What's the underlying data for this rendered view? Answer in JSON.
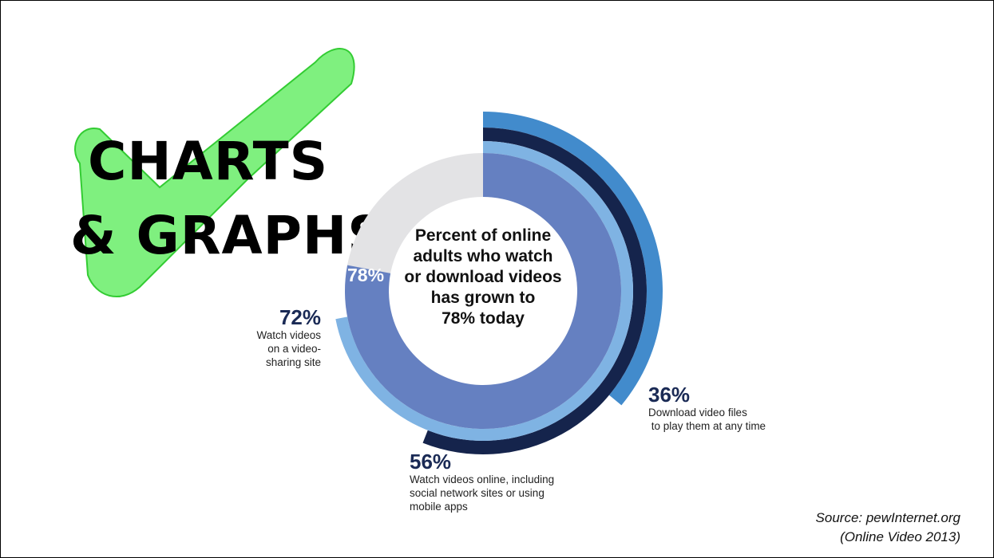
{
  "logo": {
    "line1": "CHARTS",
    "line2": "& GRAPHS",
    "check_color": "#7ff07f",
    "check_outline": "#33cc33"
  },
  "chart_data": {
    "type": "radial-bar",
    "title": "Percent of online adults who watch or download videos has grown to 78% today",
    "title_lines": [
      "Percent of online",
      "adults who watch",
      "or download videos",
      "has grown to",
      "78% today"
    ],
    "series": [
      {
        "name": "",
        "value": 78,
        "label": "78%",
        "description": [],
        "color": "#6580c1"
      },
      {
        "name": "Watch videos on a video-sharing site",
        "value": 72,
        "label": "72%",
        "description": [
          "Watch videos",
          "on a video-",
          "sharing site"
        ],
        "color": "#7fb3e3"
      },
      {
        "name": "Watch videos online, including social network sites or using mobile apps",
        "value": 56,
        "label": "56%",
        "description": [
          "Watch videos online, including",
          "social network sites or using",
          "mobile apps"
        ],
        "color": "#15244c"
      },
      {
        "name": "Download video files to play them at any time",
        "value": 36,
        "label": "36%",
        "description": [
          "Download video files",
          " to play them at any time"
        ],
        "color": "#428bcc"
      }
    ],
    "track_color": "#e3e3e5",
    "max": 100
  },
  "source": {
    "line1": "Source: pewInternet.org",
    "line2": "(Online Video 2013)"
  }
}
